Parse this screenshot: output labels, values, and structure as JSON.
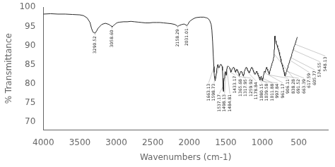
{
  "chart_data": {
    "type": "line",
    "xlabel": "Wavenumbers (cm-1)",
    "ylabel": "% Transmittance",
    "color": "#2a2a2a",
    "grid": false,
    "xlim": [
      4000,
      100
    ],
    "ylim": [
      68,
      100
    ],
    "xticks": [
      4000,
      3500,
      3000,
      2500,
      2000,
      1500,
      1000,
      500
    ],
    "yticks": [
      70,
      75,
      80,
      85,
      90,
      95,
      100
    ],
    "x": [
      4000,
      3900,
      3800,
      3700,
      3600,
      3500,
      3450,
      3400,
      3360,
      3340,
      3320,
      3290.52,
      3270,
      3250,
      3200,
      3150,
      3100,
      3080,
      3060,
      3058.6,
      3040,
      3020,
      3000,
      2980,
      2950,
      2900,
      2850,
      2800,
      2750,
      2700,
      2650,
      2600,
      2550,
      2500,
      2450,
      2400,
      2350,
      2300,
      2250,
      2200,
      2180,
      2158.29,
      2140,
      2100,
      2070,
      2031.01,
      2020,
      2010,
      2000,
      1980,
      1960,
      1940,
      1920,
      1900,
      1850,
      1800,
      1780,
      1760,
      1740,
      1720,
      1700,
      1690,
      1680,
      1670,
      1663.13,
      1660,
      1656,
      1652,
      1648,
      1645,
      1642,
      1638,
      1635,
      1630,
      1625,
      1620,
      1615,
      1610,
      1605,
      1600,
      1598.73,
      1595,
      1590,
      1585,
      1580,
      1575,
      1570,
      1560,
      1550,
      1545,
      1540,
      1537.17,
      1535,
      1533,
      1531,
      1528,
      1525,
      1520,
      1515,
      1510,
      1507,
      1504,
      1498.13,
      1495,
      1492,
      1490,
      1487,
      1484.81,
      1482,
      1478,
      1470,
      1460,
      1450,
      1445,
      1440,
      1435,
      1433.17,
      1430,
      1425,
      1420,
      1415,
      1410,
      1400,
      1395,
      1390,
      1385,
      1380,
      1375,
      1370,
      1365.68,
      1362,
      1358,
      1355,
      1350,
      1345,
      1340,
      1335,
      1330,
      1325,
      1320,
      1317.95,
      1315,
      1312,
      1308,
      1305,
      1300,
      1295,
      1290,
      1285,
      1280,
      1275,
      1270,
      1265,
      1259.92,
      1256,
      1252,
      1248,
      1244,
      1240,
      1235,
      1230,
      1225,
      1220,
      1215,
      1210,
      1205,
      1200,
      1195,
      1190,
      1185,
      1178.84,
      1175,
      1170,
      1165,
      1160,
      1155,
      1150,
      1145,
      1140,
      1135,
      1130,
      1125,
      1120,
      1115,
      1110,
      1105,
      1100,
      1095,
      1090,
      1085,
      1080.15,
      1077,
      1074,
      1070,
      1065,
      1060,
      1055,
      1050,
      1045,
      1039.58,
      1036,
      1032,
      1028,
      1024,
      1020,
      1016,
      1011.88,
      1008,
      1005,
      1002,
      997.84,
      994,
      990,
      985,
      980,
      975,
      970,
      965,
      961.17,
      957,
      953,
      950,
      947,
      944,
      941,
      938,
      935,
      930,
      925,
      920,
      915,
      910,
      906.11,
      902,
      898,
      894,
      890,
      886,
      882,
      878,
      874,
      870,
      866,
      862,
      858,
      854,
      850,
      846,
      842,
      838.28,
      836,
      834,
      832,
      830,
      828,
      826,
      824,
      820,
      816,
      812,
      808,
      804,
      800,
      796,
      792,
      788,
      784,
      780,
      776,
      772,
      768,
      764,
      760,
      756,
      752,
      748,
      744,
      740,
      736,
      732,
      728,
      724,
      720,
      716,
      712,
      708,
      704,
      700,
      696,
      691.52,
      688,
      684,
      680,
      676,
      672,
      668,
      663.39,
      660,
      656,
      652,
      648,
      644,
      640,
      636,
      632,
      628,
      624,
      617.59,
      614,
      610,
      605.77,
      602,
      598,
      595,
      591,
      587,
      583,
      579,
      574.55,
      570,
      566,
      562,
      558,
      554,
      548.13,
      544,
      540,
      536,
      532,
      528,
      524,
      520
    ],
    "values": [
      98.2,
      98.3,
      98.2,
      98.2,
      98.1,
      98.0,
      97.8,
      97.2,
      96.0,
      94.5,
      93.5,
      93.2,
      93.8,
      94.5,
      95.5,
      95.8,
      95.5,
      95.2,
      95.0,
      94.8,
      95.2,
      95.5,
      95.8,
      96.0,
      96.1,
      96.2,
      96.2,
      96.3,
      96.2,
      96.1,
      96.0,
      95.9,
      95.9,
      96.0,
      96.0,
      96.0,
      95.9,
      95.8,
      95.7,
      95.5,
      95.3,
      95.0,
      95.2,
      95.5,
      95.6,
      95.2,
      95.5,
      95.8,
      96.2,
      96.5,
      96.8,
      97.0,
      97.2,
      97.3,
      97.4,
      97.4,
      97.3,
      97.2,
      97.0,
      96.5,
      95.5,
      94.0,
      91.0,
      87.0,
      84.5,
      83.0,
      82.0,
      81.5,
      81.0,
      80.8,
      81.0,
      81.5,
      82.0,
      82.8,
      83.5,
      84.2,
      84.8,
      85.0,
      84.8,
      84.5,
      84.3,
      84.2,
      84.3,
      84.5,
      84.8,
      85.0,
      85.1,
      85.0,
      84.5,
      83.5,
      81.5,
      79.5,
      78.5,
      78.0,
      78.5,
      79.5,
      80.5,
      81.5,
      82.5,
      83.0,
      83.2,
      83.0,
      82.5,
      82.2,
      82.5,
      83.0,
      83.5,
      84.0,
      84.3,
      84.5,
      84.6,
      84.5,
      84.3,
      84.0,
      83.8,
      83.5,
      83.2,
      83.0,
      83.2,
      83.5,
      83.8,
      84.0,
      84.2,
      84.3,
      84.2,
      84.0,
      83.8,
      83.5,
      83.2,
      83.0,
      83.2,
      83.5,
      83.7,
      83.8,
      83.7,
      83.5,
      83.2,
      83.0,
      82.8,
      82.5,
      82.2,
      82.0,
      82.2,
      82.5,
      82.8,
      83.0,
      83.2,
      83.3,
      83.2,
      83.0,
      82.8,
      82.5,
      82.3,
      82.0,
      82.2,
      82.5,
      82.8,
      83.2,
      83.5,
      83.8,
      84.0,
      84.2,
      84.3,
      84.2,
      84.0,
      83.8,
      83.5,
      83.3,
      83.2,
      83.0,
      82.8,
      83.0,
      83.3,
      83.5,
      83.8,
      84.0,
      84.2,
      84.3,
      84.2,
      84.0,
      83.8,
      83.5,
      83.2,
      83.0,
      82.8,
      82.6,
      82.5,
      82.6,
      82.8,
      83.0,
      83.2,
      83.3,
      83.2,
      83.0,
      82.8,
      82.5,
      82.2,
      82.0,
      81.8,
      81.5,
      81.2,
      81.0,
      81.2,
      81.5,
      81.8,
      82.0,
      81.8,
      81.5,
      81.2,
      81.0,
      80.8,
      81.0,
      81.5,
      82.0,
      82.5,
      83.0,
      83.3,
      83.2,
      83.0,
      83.2,
      83.5,
      83.8,
      84.0,
      84.2,
      84.3,
      84.2,
      84.0,
      83.8,
      83.5,
      83.2,
      83.0,
      82.8,
      82.5,
      82.8,
      83.2,
      83.5,
      83.8,
      84.0,
      84.2,
      84.5,
      84.8,
      85.0,
      85.3,
      85.5,
      85.8,
      86.0,
      86.2,
      86.5,
      87.0,
      88.0,
      89.0,
      90.0,
      91.0,
      91.8,
      92.3,
      92.5,
      92.3,
      91.8,
      91.2,
      90.8,
      90.5,
      90.3,
      90.2,
      90.0,
      89.8,
      89.5,
      89.2,
      89.0,
      88.8,
      88.5,
      88.2,
      87.8,
      87.5,
      87.2,
      86.8,
      86.5,
      86.2,
      85.8,
      85.5,
      85.2,
      85.0,
      84.8,
      84.5,
      84.2,
      83.8,
      83.5,
      83.2,
      83.0,
      82.8,
      82.2,
      82.0,
      82.2,
      82.5,
      82.8,
      83.0,
      83.2,
      83.5,
      83.8,
      84.0,
      84.2,
      84.5,
      84.8,
      85.0,
      85.2,
      85.5,
      85.8,
      86.0,
      86.3,
      86.5,
      86.8,
      87.0,
      87.2,
      87.5,
      87.8,
      88.0,
      88.3,
      88.5,
      88.8,
      89.0,
      89.2,
      89.5,
      89.8,
      90.0,
      90.2,
      90.5,
      90.8,
      91.0,
      91.2,
      91.5,
      91.8,
      92.0,
      92.2
    ],
    "annotations": [
      {
        "x": 3290.52,
        "label": "3290.52"
      },
      {
        "x": 3058.6,
        "label": "3058.60"
      },
      {
        "x": 2158.29,
        "label": "2158.29"
      },
      {
        "x": 2031.01,
        "label": "2031.01"
      },
      {
        "x": 1663.13,
        "label": "1663.13"
      },
      {
        "x": 1598.73,
        "label": "1598.73"
      },
      {
        "x": 1537.17,
        "label": "1537.17"
      },
      {
        "x": 1498.13,
        "label": "1498.13"
      },
      {
        "x": 1484.81,
        "label": "1484.81"
      },
      {
        "x": 1433.17,
        "label": "1433.17"
      },
      {
        "x": 1365.68,
        "label": "1365.68"
      },
      {
        "x": 1317.95,
        "label": "1317.95"
      },
      {
        "x": 1259.92,
        "label": "1259.92"
      },
      {
        "x": 1178.84,
        "label": "1178.84"
      },
      {
        "x": 1080.15,
        "label": "1080.15"
      },
      {
        "x": 1039.58,
        "label": "1039.58"
      },
      {
        "x": 1011.88,
        "label": "1011.88"
      },
      {
        "x": 997.84,
        "label": "997.84"
      },
      {
        "x": 961.17,
        "label": "961.17"
      },
      {
        "x": 906.11,
        "label": "906.11"
      },
      {
        "x": 838.28,
        "label": "838.28"
      },
      {
        "x": 691.52,
        "label": "691.52"
      },
      {
        "x": 663.39,
        "label": "663.39"
      },
      {
        "x": 617.59,
        "label": "617.59"
      },
      {
        "x": 605.77,
        "label": "605.77"
      },
      {
        "x": 574.55,
        "label": "574.55"
      },
      {
        "x": 548.13,
        "label": "548.13"
      }
    ]
  }
}
